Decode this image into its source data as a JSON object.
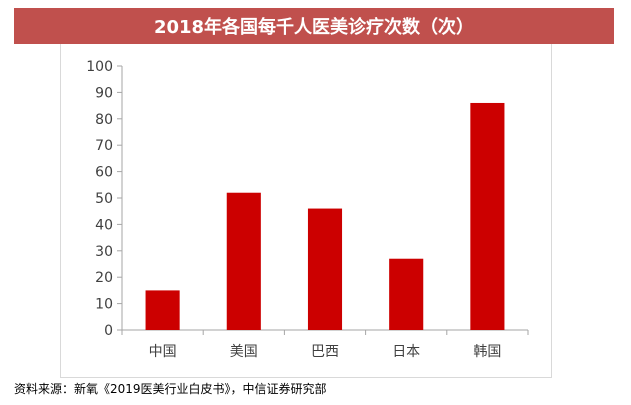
{
  "title": "2018年各国每千人医美诊疗次数（次）",
  "source": "资料来源：新氧《2019医美行业白皮书》，中信证券研究部",
  "colors": {
    "title_bg": "#c0504d",
    "bar": "#cc0000",
    "axis": "#a6a6a6"
  },
  "chart_data": {
    "type": "bar",
    "title": "2018年各国每千人医美诊疗次数（次）",
    "categories": [
      "中国",
      "美国",
      "巴西",
      "日本",
      "韩国"
    ],
    "values": [
      15,
      52,
      46,
      27,
      86
    ],
    "yticks": [
      0,
      10,
      20,
      30,
      40,
      50,
      60,
      70,
      80,
      90,
      100
    ],
    "ylim": [
      0,
      100
    ],
    "xlabel": "",
    "ylabel": "",
    "grid": false,
    "legend": false
  }
}
